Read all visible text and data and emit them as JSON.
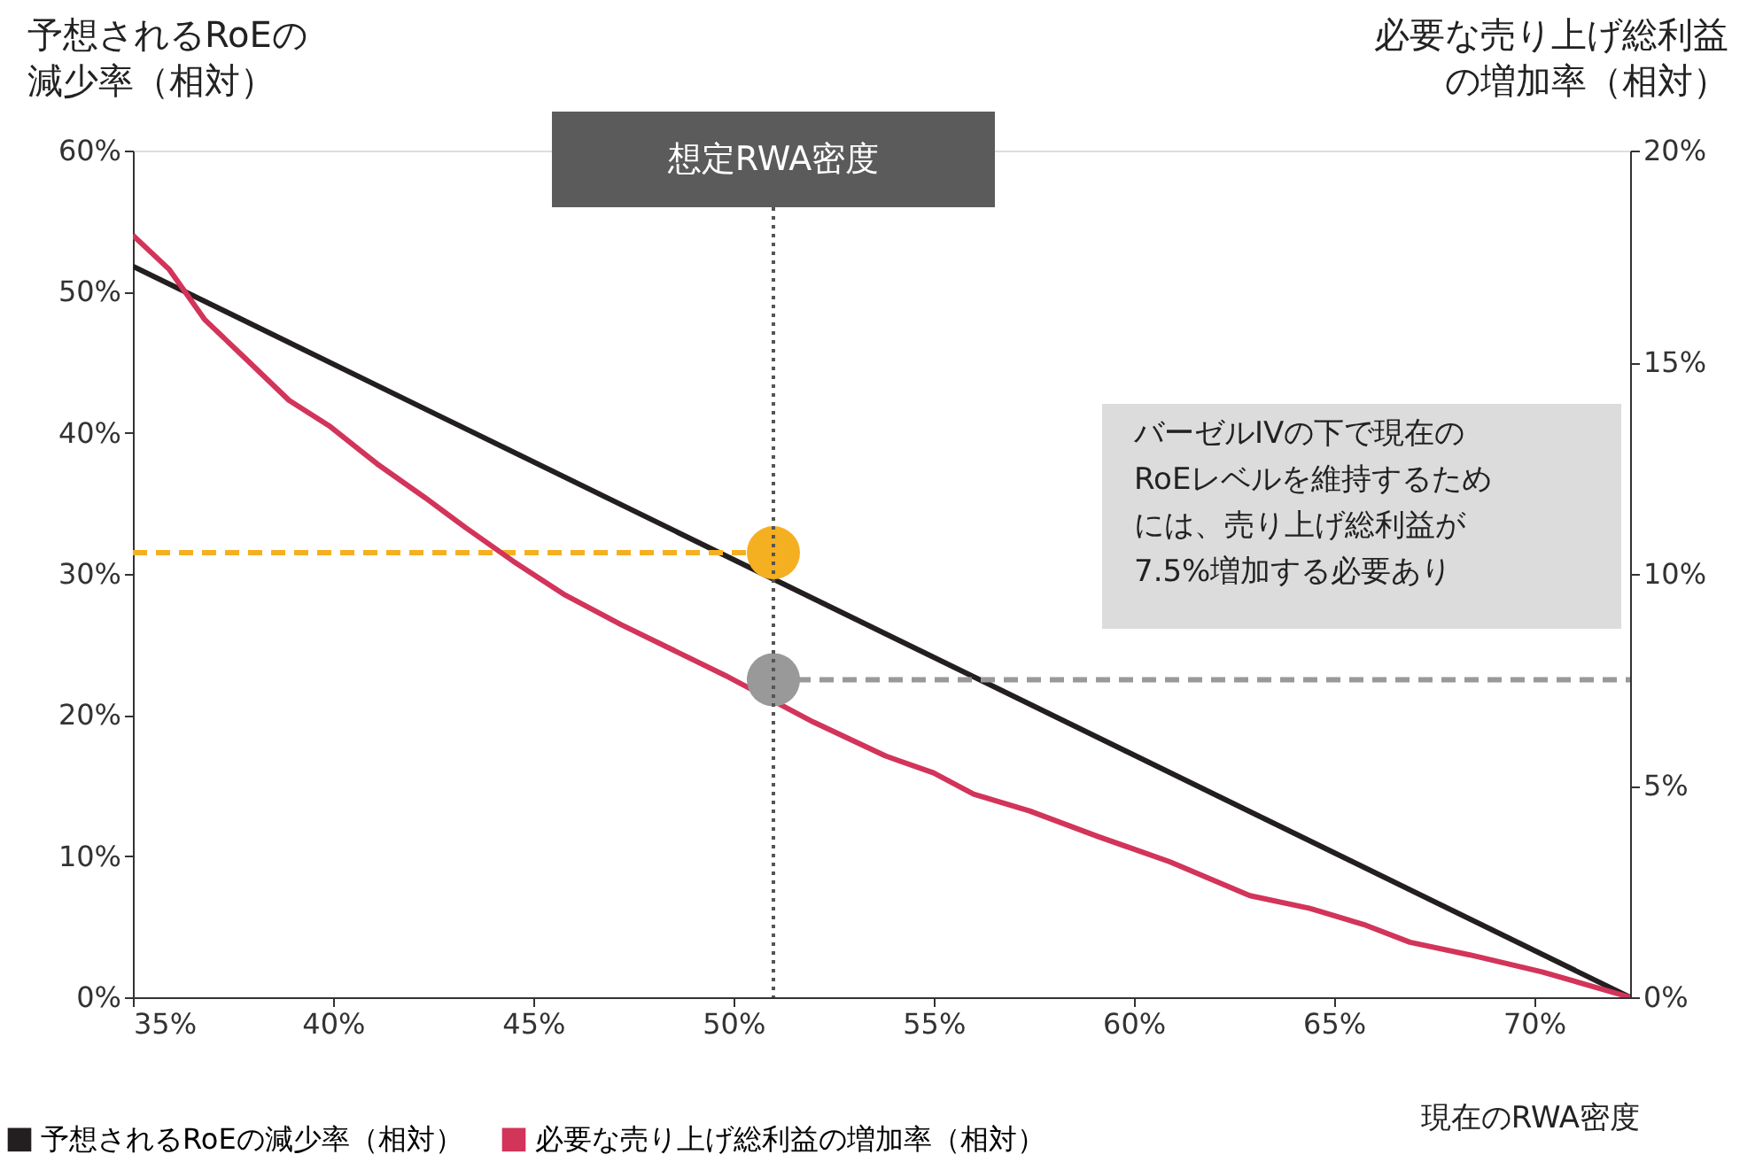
{
  "chart_data": {
    "type": "line",
    "xlabel": "現在のRWA密度",
    "ylabel": "予想されるRoEの減少率（相対）",
    "y2label": "必要な売り上げ総利益の増加率（相対）",
    "xlim": [
      35,
      72.4
    ],
    "xticks": [
      {
        "value": 35,
        "label": "35%"
      },
      {
        "value": 40,
        "label": "40%"
      },
      {
        "value": 45,
        "label": "45%"
      },
      {
        "value": 50,
        "label": "50%"
      },
      {
        "value": 55,
        "label": "55%"
      },
      {
        "value": 60,
        "label": "60%"
      },
      {
        "value": 65,
        "label": "65%"
      },
      {
        "value": 70,
        "label": "70%"
      }
    ],
    "ylim": [
      0,
      60
    ],
    "yticks": [
      {
        "value": 0,
        "label": "0%"
      },
      {
        "value": 10,
        "label": "10%"
      },
      {
        "value": 20,
        "label": "20%"
      },
      {
        "value": 30,
        "label": "30%"
      },
      {
        "value": 40,
        "label": "40%"
      },
      {
        "value": 50,
        "label": "50%"
      },
      {
        "value": 60,
        "label": "60%"
      }
    ],
    "y2lim": [
      0,
      20
    ],
    "y2ticks": [
      {
        "value": 0,
        "label": "0%"
      },
      {
        "value": 5,
        "label": "5%"
      },
      {
        "value": 10,
        "label": "10%"
      },
      {
        "value": 15,
        "label": "15%"
      },
      {
        "value": 20,
        "label": "20%"
      }
    ],
    "grid": false,
    "legend": "bottom left",
    "ref_lines": [
      {
        "axis": "x",
        "value": 51,
        "label": "想定RWA密度",
        "line_style": "dotted",
        "color": "#555555"
      }
    ],
    "annotations": [
      "バーゼルIVの下で現在のRoEレベルを維持するためには、売り上げ総利益が7.5%増加する必要あり"
    ],
    "series": [
      {
        "name": "予想されるRoEの減少率（相対）",
        "color": "#231f20",
        "x": [
          35,
          72.4
        ],
        "values": [
          51.8,
          0
        ]
      },
      {
        "name": "必要な売り上げ総利益の増加率（相対）",
        "color": "#d2345a",
        "axis": "y2",
        "x": [
          35,
          35.9,
          36.8,
          37.8,
          38.9,
          39.9,
          41.1,
          42.3,
          43.3,
          44.5,
          45.8,
          47.2,
          48.5,
          49.8,
          52,
          53.8,
          55,
          56,
          57.4,
          59.1,
          60.9,
          62.9,
          64.4,
          65.8,
          66.9,
          68.4,
          70.2,
          72.4
        ],
        "values": [
          18,
          17.2,
          16,
          15.1,
          14.1,
          13.5,
          12.6,
          11.8,
          11.1,
          10.3,
          9.5,
          8.8,
          8.2,
          7.6,
          6.5,
          5.7,
          5.3,
          4.8,
          4.4,
          3.8,
          3.2,
          2.4,
          2.1,
          1.7,
          1.3,
          1,
          0.6,
          0
        ]
      },
      {
        "line_style": "dashed",
        "color": "#f5b021",
        "x": [
          35,
          51
        ],
        "values": [
          31.5,
          31.5
        ]
      },
      {
        "type": "scatter",
        "marker": "circle",
        "color": "#f5b021",
        "x": [
          51
        ],
        "values": [
          31.5
        ]
      },
      {
        "line_style": "dashed",
        "color": "#999999",
        "axis": "y2",
        "x": [
          51,
          72.4
        ],
        "values": [
          7.5,
          7.5
        ]
      },
      {
        "type": "scatter",
        "marker": "circle",
        "color": "#999999",
        "axis": "y2",
        "x": [
          51
        ],
        "values": [
          7.5
        ]
      }
    ]
  }
}
